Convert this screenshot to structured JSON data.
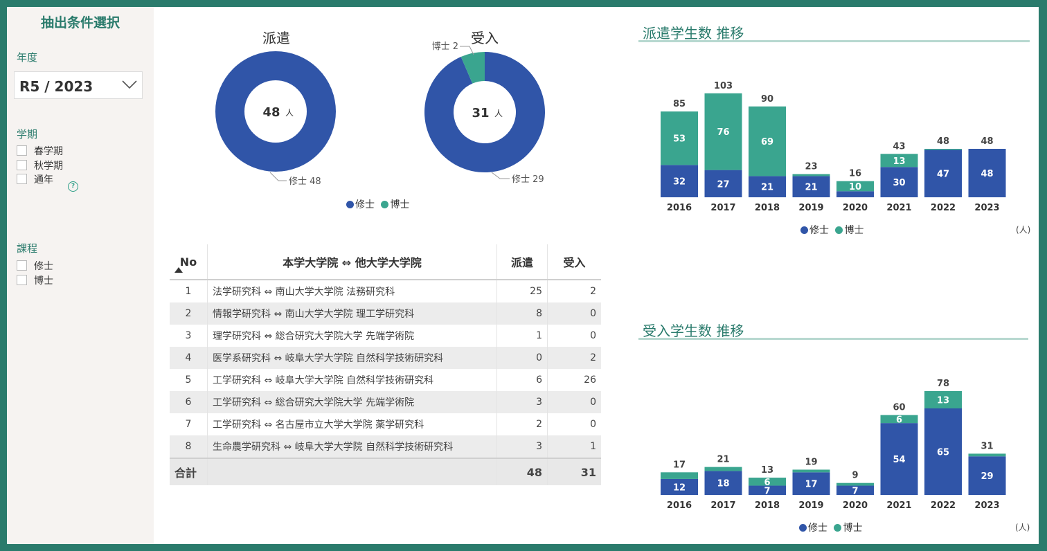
{
  "sidebar": {
    "title": "抽出条件選択",
    "year_label": "年度",
    "year_value": "R5 / 2023",
    "term_label": "学期",
    "terms": [
      "春学期",
      "秋学期",
      "通年"
    ],
    "help_icon": "question-circle-icon",
    "course_label": "課程",
    "courses": [
      "修士",
      "博士"
    ]
  },
  "colors": {
    "master": "#3055a8",
    "doctor": "#3aa58f",
    "accent": "#2a7b6c"
  },
  "table": {
    "headers": [
      "No",
      "本学大学院 ⇔ 他大学大学院",
      "派遣",
      "受入"
    ],
    "sort_icon": "sort-asc-icon",
    "rows": [
      {
        "no": "1",
        "name": "法学研究科 ⇔ 南山大学大学院 法務研究科",
        "send": "25",
        "recv": "2"
      },
      {
        "no": "2",
        "name": "情報学研究科 ⇔ 南山大学大学院 理工学研究科",
        "send": "8",
        "recv": "0"
      },
      {
        "no": "3",
        "name": "理学研究科 ⇔ 総合研究大学院大学 先端学術院",
        "send": "1",
        "recv": "0"
      },
      {
        "no": "4",
        "name": "医学系研究科 ⇔ 岐阜大学大学院 自然科学技術研究科",
        "send": "0",
        "recv": "2"
      },
      {
        "no": "5",
        "name": "工学研究科 ⇔ 岐阜大学大学院 自然科学技術研究科",
        "send": "6",
        "recv": "26"
      },
      {
        "no": "6",
        "name": "工学研究科 ⇔ 総合研究大学院大学 先端学術院",
        "send": "3",
        "recv": "0"
      },
      {
        "no": "7",
        "name": "工学研究科 ⇔ 名古屋市立大学大学院 薬学研究科",
        "send": "2",
        "recv": "0"
      },
      {
        "no": "8",
        "name": "生命農学研究科 ⇔ 岐阜大学大学院 自然科学技術研究科",
        "send": "3",
        "recv": "1"
      }
    ],
    "total": {
      "label": "合計",
      "send": "48",
      "recv": "31"
    }
  },
  "chart_data": [
    {
      "type": "pie",
      "title": "派遣",
      "center_value": "48",
      "center_unit": "人",
      "slices": [
        {
          "name": "修士",
          "value": 48
        },
        {
          "name": "博士",
          "value": 0
        }
      ],
      "slice_labels": [
        "修士 48"
      ],
      "legend": [
        "修士",
        "博士"
      ]
    },
    {
      "type": "pie",
      "title": "受入",
      "center_value": "31",
      "center_unit": "人",
      "slices": [
        {
          "name": "修士",
          "value": 29
        },
        {
          "name": "博士",
          "value": 2
        }
      ],
      "slice_labels": [
        "修士 29",
        "博士 2"
      ]
    },
    {
      "type": "bar",
      "stacked": true,
      "title": "派遣学生数 推移",
      "categories": [
        "2016",
        "2017",
        "2018",
        "2019",
        "2020",
        "2021",
        "2022",
        "2023"
      ],
      "series": [
        {
          "name": "修士",
          "values": [
            32,
            27,
            21,
            21,
            6,
            30,
            47,
            48
          ]
        },
        {
          "name": "博士",
          "values": [
            53,
            76,
            69,
            2,
            10,
            13,
            1,
            0
          ]
        }
      ],
      "totals": [
        85,
        103,
        90,
        23,
        16,
        43,
        48,
        48
      ],
      "labels_master": [
        "32",
        "27",
        "21",
        "21",
        "",
        "30",
        "47",
        "48"
      ],
      "labels_doctor": [
        "53",
        "76",
        "69",
        "",
        "10",
        "13",
        "",
        ""
      ],
      "unit": "(人)",
      "legend": [
        "修士",
        "博士"
      ]
    },
    {
      "type": "bar",
      "stacked": true,
      "title": "受入学生数 推移",
      "categories": [
        "2016",
        "2017",
        "2018",
        "2019",
        "2020",
        "2021",
        "2022",
        "2023"
      ],
      "series": [
        {
          "name": "修士",
          "values": [
            12,
            18,
            7,
            17,
            7,
            54,
            65,
            29
          ]
        },
        {
          "name": "博士",
          "values": [
            5,
            3,
            6,
            2,
            2,
            6,
            13,
            2
          ]
        }
      ],
      "totals": [
        17,
        21,
        13,
        19,
        9,
        60,
        78,
        31
      ],
      "labels_master": [
        "12",
        "18",
        "7",
        "17",
        "7",
        "54",
        "65",
        "29"
      ],
      "labels_doctor": [
        "",
        "",
        "6",
        "",
        "",
        "6",
        "13",
        ""
      ],
      "unit": "(人)",
      "legend": [
        "修士",
        "博士"
      ]
    }
  ]
}
